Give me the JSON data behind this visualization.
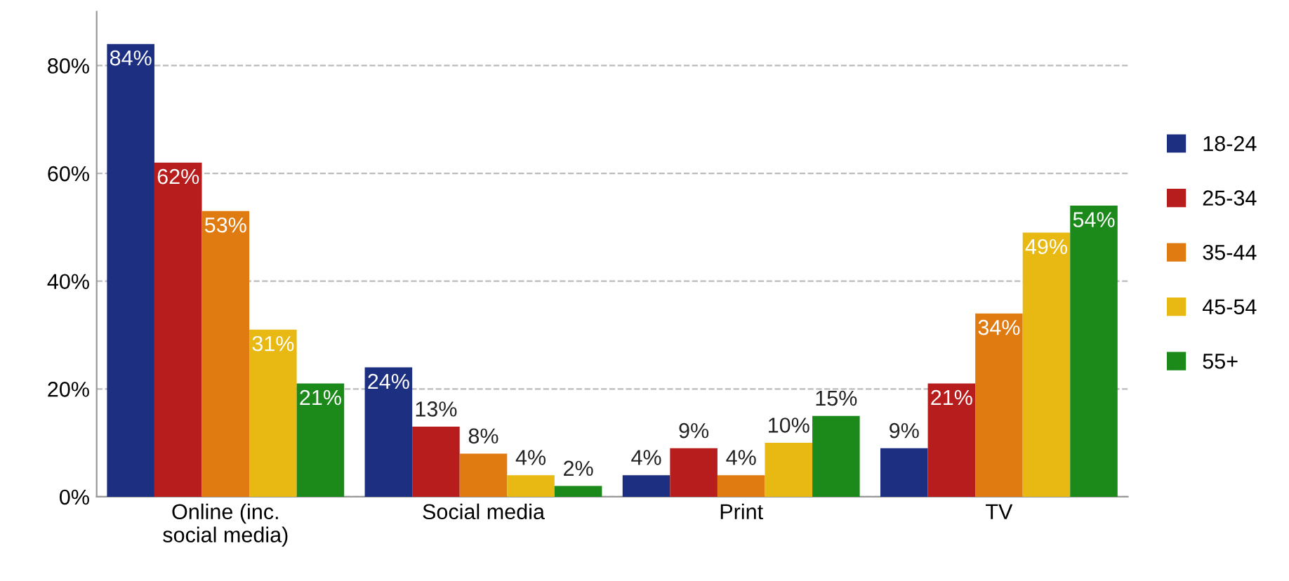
{
  "chart_data": {
    "type": "bar",
    "categories": [
      "Online (inc. social media)",
      "Social media",
      "Print",
      "TV"
    ],
    "series": [
      {
        "name": "18-24",
        "color": "#1c2f80",
        "values": [
          84,
          24,
          4,
          9
        ],
        "value_labels": [
          "84%",
          "24%",
          "4%",
          "9%"
        ]
      },
      {
        "name": "25-34",
        "color": "#b81d1d",
        "values": [
          62,
          13,
          9,
          21
        ],
        "value_labels": [
          "62%",
          "13%",
          "9%",
          "21%"
        ]
      },
      {
        "name": "35-44",
        "color": "#e07b12",
        "values": [
          53,
          8,
          4,
          34
        ],
        "value_labels": [
          "53%",
          "8%",
          "4%",
          "34%"
        ]
      },
      {
        "name": "45-54",
        "color": "#e8b912",
        "values": [
          31,
          4,
          10,
          49
        ],
        "value_labels": [
          "31%",
          "4%",
          "10%",
          "49%"
        ]
      },
      {
        "name": "55+",
        "color": "#1b8a1b",
        "values": [
          21,
          2,
          15,
          54
        ],
        "value_labels": [
          "21%",
          "2%",
          "15%",
          "54%"
        ]
      }
    ],
    "ylim": [
      0,
      90
    ],
    "yticks": [
      {
        "value": 0,
        "label": "0%"
      },
      {
        "value": 20,
        "label": "20%"
      },
      {
        "value": 40,
        "label": "40%"
      },
      {
        "value": 60,
        "label": "60%"
      },
      {
        "value": 80,
        "label": "80%"
      }
    ],
    "grid": "y",
    "legend": "right"
  }
}
